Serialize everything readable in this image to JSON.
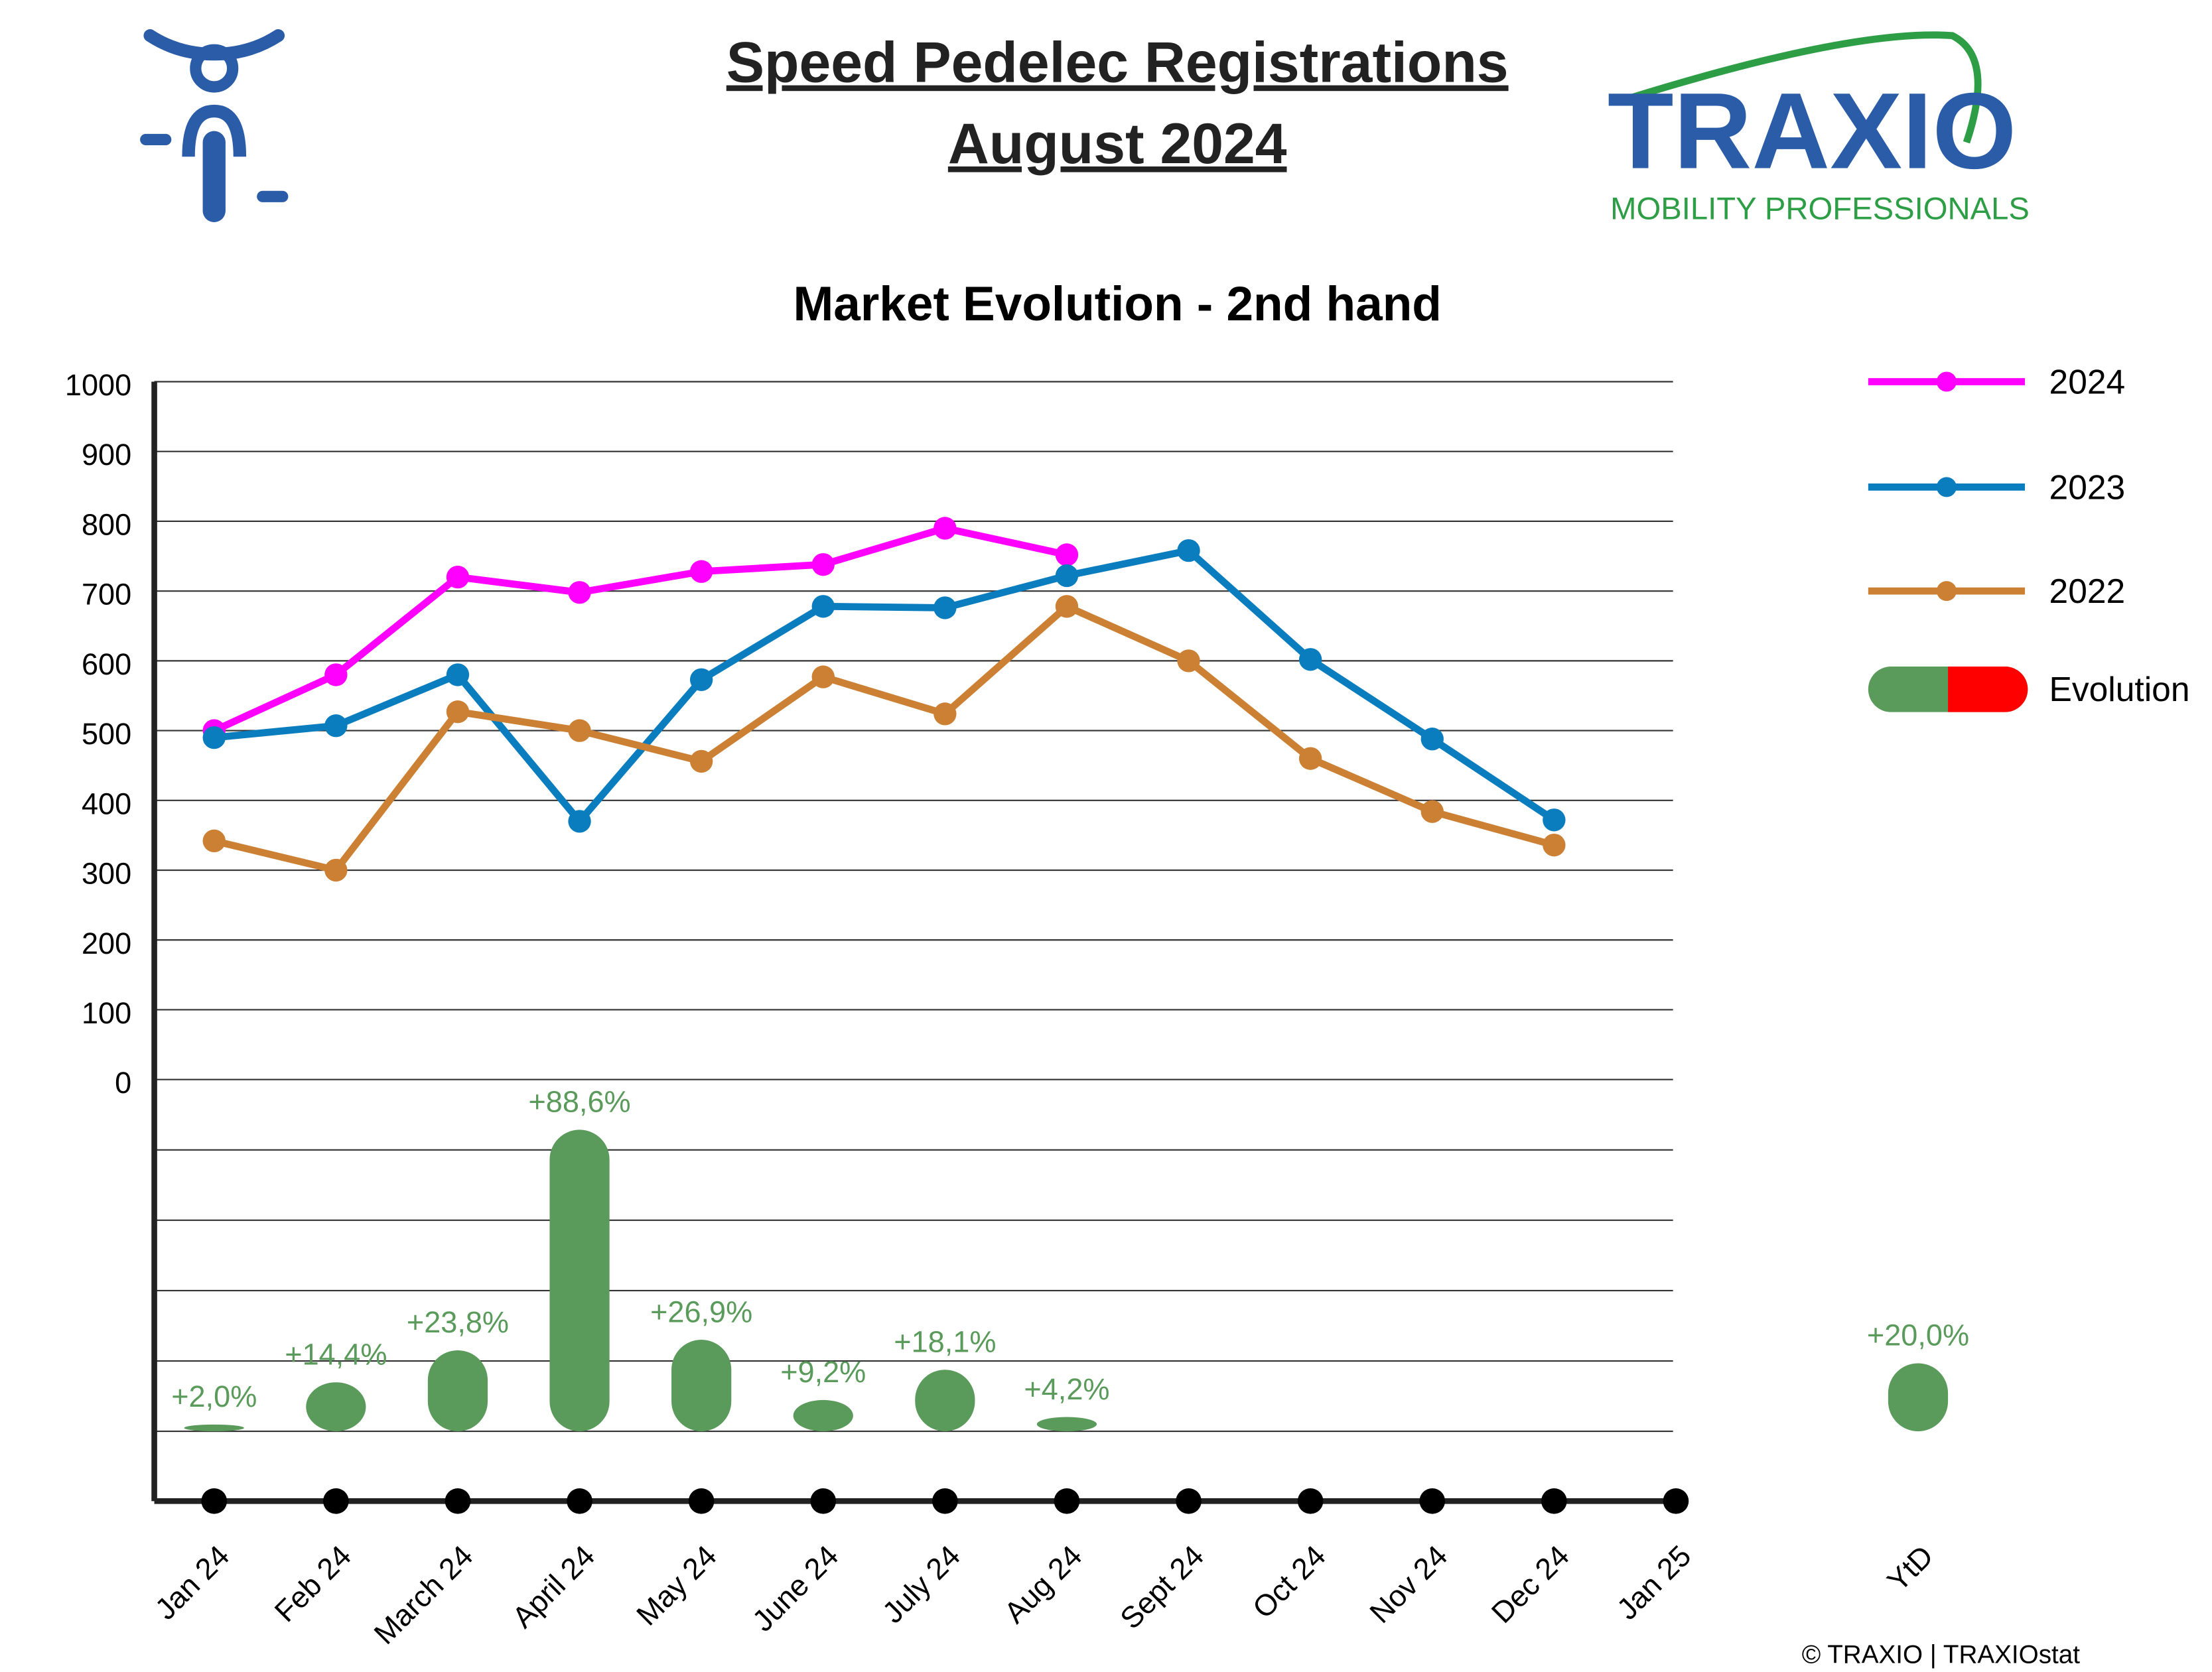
{
  "chart_data": {
    "type": "line",
    "title": "Speed Pedelec Registrations",
    "subtitle": "August 2024",
    "chart_title": "Market Evolution - 2nd hand",
    "logo": {
      "name": "TRAXIO",
      "tagline": "MOBILITY PROFESSIONALS"
    },
    "copyright": "© TRAXIO | TRAXIOstat",
    "categories": [
      "Jan 24",
      "Feb 24",
      "March 24",
      "April 24",
      "May 24",
      "June 24",
      "July 24",
      "Aug 24",
      "Sept 24",
      "Oct 24",
      "Nov 24",
      "Dec 24",
      "Jan 25"
    ],
    "ylim": [
      0,
      1000
    ],
    "yticks": [
      0,
      100,
      200,
      300,
      400,
      500,
      600,
      700,
      800,
      900,
      1000
    ],
    "grid": true,
    "y2lim": [
      0,
      100
    ],
    "series": [
      {
        "name": "2024",
        "color": "#ff00ff",
        "values": [
          500,
          580,
          720,
          698,
          728,
          738,
          790,
          752,
          null,
          null,
          null,
          null,
          null
        ]
      },
      {
        "name": "2023",
        "color": "#0a7dbf",
        "values": [
          490,
          507,
          580,
          370,
          573,
          678,
          676,
          722,
          758,
          602,
          488,
          372,
          null
        ]
      },
      {
        "name": "2022",
        "color": "#cc8033",
        "values": [
          342,
          300,
          527,
          500,
          456,
          577,
          524,
          678,
          600,
          460,
          384,
          336,
          null
        ]
      },
      {
        "name": "Evolution",
        "type": "bar",
        "axis": "y2",
        "color": "#5a9a5a",
        "negative_color": "#ff0000",
        "values": [
          2.0,
          14.4,
          23.8,
          88.6,
          26.9,
          9.2,
          18.1,
          4.2,
          null,
          null,
          null,
          null,
          null
        ],
        "value_labels": [
          "+2,0%",
          "+14,4%",
          "+23,8%",
          "+88,6%",
          "+26,9%",
          "+9,2%",
          "+18,1%",
          "+4,2%",
          null,
          null,
          null,
          null,
          null
        ]
      }
    ],
    "ytd": {
      "category": "YtD",
      "value": 20.0,
      "value_label": "+20,0%"
    },
    "legend": "right"
  }
}
